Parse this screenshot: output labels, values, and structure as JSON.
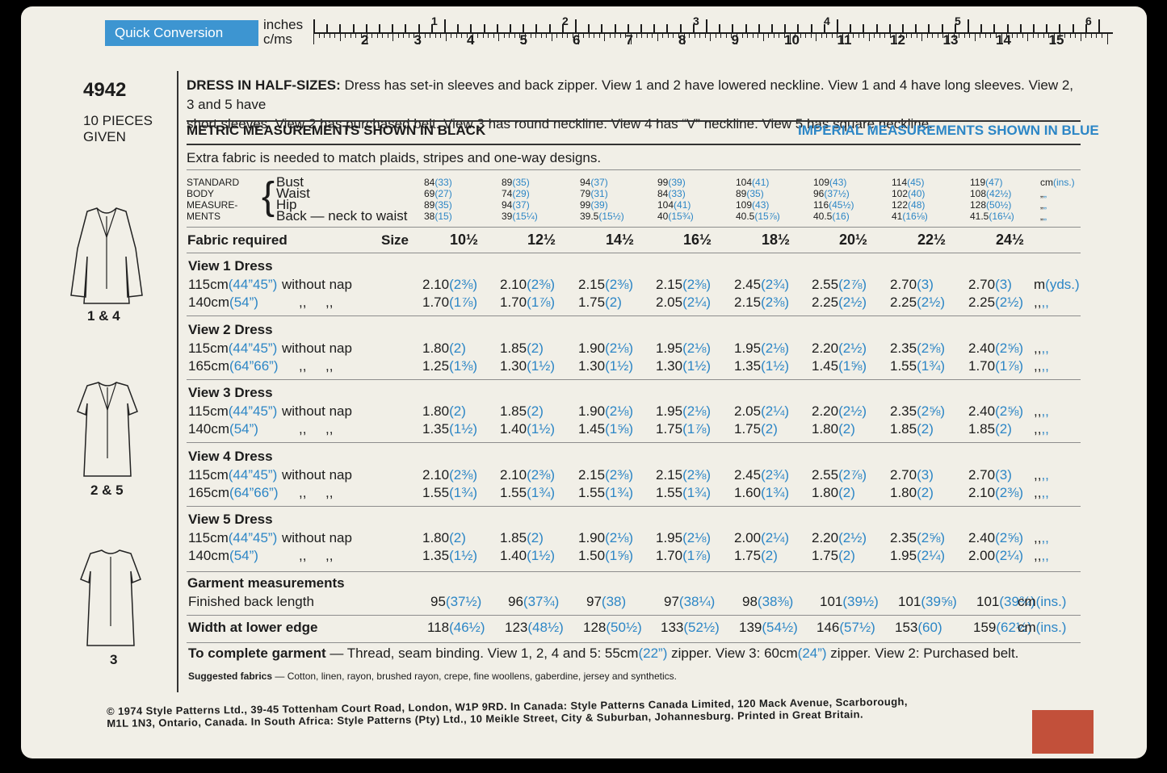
{
  "ruler": {
    "quick_conversion": "Quick Conversion",
    "inches_label": "inches",
    "cms_label": "c/ms",
    "inch_numbers": [
      "1",
      "2",
      "3",
      "4",
      "5",
      "6"
    ],
    "cm_numbers": [
      "2",
      "3",
      "4",
      "5",
      "6",
      "7",
      "8",
      "9",
      "10",
      "11",
      "12",
      "13",
      "14",
      "15"
    ]
  },
  "pattern_number": "4942",
  "pieces_line1": "10 PIECES",
  "pieces_line2": "GIVEN",
  "view_labels": [
    "1 & 4",
    "2 & 5",
    "3"
  ],
  "description_bold": "DRESS IN HALF-SIZES:",
  "description_line1": "Dress has set-in sleeves and back zipper. View 1 and 2 have lowered neckline. View 1 and 4 have long sleeves. View 2, 3 and 5 have",
  "description_line2": "short sleeves. View 2 has purchased belt. View 3 has round neckline. View 4 has “V” neckline. View 5 has square neckline.",
  "metric_heading": "METRIC MEASUREMENTS SHOWN IN BLACK",
  "imperial_heading": "IMPERIAL MEASUREMENTS SHOWN IN BLUE",
  "extra_fabric_note": "Extra fabric is needed to match plaids, stripes and one-way designs.",
  "body_measure_label": [
    "STANDARD",
    "BODY",
    "MEASURE-",
    "MENTS"
  ],
  "body_rows": [
    {
      "label": "Bust",
      "values": [
        [
          "84",
          "(33)"
        ],
        [
          "89",
          "(35)"
        ],
        [
          "94",
          "(37)"
        ],
        [
          "99",
          "(39)"
        ],
        [
          "104",
          "(41)"
        ],
        [
          "109",
          "(43)"
        ],
        [
          "114",
          "(45)"
        ],
        [
          "119",
          "(47)"
        ]
      ],
      "unit": [
        "cm",
        "(ins.)"
      ]
    },
    {
      "label": "Waist",
      "values": [
        [
          "69",
          "(27)"
        ],
        [
          "74",
          "(29)"
        ],
        [
          "79",
          "(31)"
        ],
        [
          "84",
          "(33)"
        ],
        [
          "89",
          "(35)"
        ],
        [
          "96",
          "(37½)"
        ],
        [
          "102",
          "(40)"
        ],
        [
          "108",
          "(42½)"
        ]
      ],
      "unit": [
        "„",
        "„"
      ]
    },
    {
      "label": "Hip",
      "values": [
        [
          "89",
          "(35)"
        ],
        [
          "94",
          "(37)"
        ],
        [
          "99",
          "(39)"
        ],
        [
          "104",
          "(41)"
        ],
        [
          "109",
          "(43)"
        ],
        [
          "116",
          "(45½)"
        ],
        [
          "122",
          "(48)"
        ],
        [
          "128",
          "(50½)"
        ]
      ],
      "unit": [
        "„",
        "„"
      ]
    },
    {
      "label": "Back — neck to waist",
      "values": [
        [
          "38",
          "(15)"
        ],
        [
          "39",
          "(15¼)"
        ],
        [
          "39.5",
          "(15½)"
        ],
        [
          "40",
          "(15¾)"
        ],
        [
          "40.5",
          "(15⅞)"
        ],
        [
          "40.5",
          "(16)"
        ],
        [
          "41",
          "(16⅛)"
        ],
        [
          "41.5",
          "(16¼)"
        ]
      ],
      "unit": [
        "„",
        "„"
      ]
    }
  ],
  "fabric_required": "Fabric required",
  "size_label": "Size",
  "sizes": [
    "10½",
    "12½",
    "14½",
    "16½",
    "18½",
    "20½",
    "22½",
    "24½"
  ],
  "views": [
    {
      "title": "View 1   Dress",
      "rows": [
        {
          "width": "115cm",
          "width_imp": "(44”45”)",
          "note": "without nap",
          "values": [
            [
              "2.10",
              "(2⅜)"
            ],
            [
              "2.10",
              "(2⅜)"
            ],
            [
              "2.15",
              "(2⅜)"
            ],
            [
              "2.15",
              "(2⅜)"
            ],
            [
              "2.45",
              "(2¾)"
            ],
            [
              "2.55",
              "(2⅞)"
            ],
            [
              "2.70",
              "(3)"
            ],
            [
              "2.70",
              "(3)"
            ]
          ],
          "unit": [
            "m",
            "(yds.)"
          ]
        },
        {
          "width": "140cm",
          "width_imp": "(54”)",
          "note": ",,     ,,",
          "values": [
            [
              "1.70",
              "(1⅞)"
            ],
            [
              "1.70",
              "(1⅞)"
            ],
            [
              "1.75",
              "(2)"
            ],
            [
              "2.05",
              "(2¼)"
            ],
            [
              "2.15",
              "(2⅜)"
            ],
            [
              "2.25",
              "(2½)"
            ],
            [
              "2.25",
              "(2½)"
            ],
            [
              "2.25",
              "(2½)"
            ]
          ],
          "unit": [
            ",,",
            ",,"
          ]
        }
      ]
    },
    {
      "title": "View 2   Dress",
      "rows": [
        {
          "width": "115cm",
          "width_imp": "(44”45”)",
          "note": "without nap",
          "values": [
            [
              "1.80",
              "(2)"
            ],
            [
              "1.85",
              "(2)"
            ],
            [
              "1.90",
              "(2⅛)"
            ],
            [
              "1.95",
              "(2⅛)"
            ],
            [
              "1.95",
              "(2⅛)"
            ],
            [
              "2.20",
              "(2½)"
            ],
            [
              "2.35",
              "(2⅝)"
            ],
            [
              "2.40",
              "(2⅝)"
            ]
          ],
          "unit": [
            ",,",
            ",,"
          ]
        },
        {
          "width": "165cm",
          "width_imp": "(64”66”)",
          "note": ",,     ,,",
          "values": [
            [
              "1.25",
              "(1⅜)"
            ],
            [
              "1.30",
              "(1½)"
            ],
            [
              "1.30",
              "(1½)"
            ],
            [
              "1.30",
              "(1½)"
            ],
            [
              "1.35",
              "(1½)"
            ],
            [
              "1.45",
              "(1⅝)"
            ],
            [
              "1.55",
              "(1¾)"
            ],
            [
              "1.70",
              "(1⅞)"
            ]
          ],
          "unit": [
            ",,",
            ",,"
          ]
        }
      ]
    },
    {
      "title": "View 3   Dress",
      "rows": [
        {
          "width": "115cm",
          "width_imp": "(44”45”)",
          "note": "without nap",
          "values": [
            [
              "1.80",
              "(2)"
            ],
            [
              "1.85",
              "(2)"
            ],
            [
              "1.90",
              "(2⅛)"
            ],
            [
              "1.95",
              "(2⅛)"
            ],
            [
              "2.05",
              "(2¼)"
            ],
            [
              "2.20",
              "(2½)"
            ],
            [
              "2.35",
              "(2⅝)"
            ],
            [
              "2.40",
              "(2⅝)"
            ]
          ],
          "unit": [
            ",,",
            ",,"
          ]
        },
        {
          "width": "140cm",
          "width_imp": "(54”)",
          "note": ",,     ,,",
          "values": [
            [
              "1.35",
              "(1½)"
            ],
            [
              "1.40",
              "(1½)"
            ],
            [
              "1.45",
              "(1⅝)"
            ],
            [
              "1.75",
              "(1⅞)"
            ],
            [
              "1.75",
              "(2)"
            ],
            [
              "1.80",
              "(2)"
            ],
            [
              "1.85",
              "(2)"
            ],
            [
              "1.85",
              "(2)"
            ]
          ],
          "unit": [
            ",,",
            ",,"
          ]
        }
      ]
    },
    {
      "title": "View 4   Dress",
      "rows": [
        {
          "width": "115cm",
          "width_imp": "(44”45”)",
          "note": "without nap",
          "values": [
            [
              "2.10",
              "(2⅜)"
            ],
            [
              "2.10",
              "(2⅜)"
            ],
            [
              "2.15",
              "(2⅜)"
            ],
            [
              "2.15",
              "(2⅜)"
            ],
            [
              "2.45",
              "(2¾)"
            ],
            [
              "2.55",
              "(2⅞)"
            ],
            [
              "2.70",
              "(3)"
            ],
            [
              "2.70",
              "(3)"
            ]
          ],
          "unit": [
            ",,",
            ",,"
          ]
        },
        {
          "width": "165cm",
          "width_imp": "(64”66”)",
          "note": ",,     ,,",
          "values": [
            [
              "1.55",
              "(1¾)"
            ],
            [
              "1.55",
              "(1¾)"
            ],
            [
              "1.55",
              "(1¾)"
            ],
            [
              "1.55",
              "(1¾)"
            ],
            [
              "1.60",
              "(1¾)"
            ],
            [
              "1.80",
              "(2)"
            ],
            [
              "1.80",
              "(2)"
            ],
            [
              "2.10",
              "(2⅜)"
            ]
          ],
          "unit": [
            ",,",
            ",,"
          ]
        }
      ]
    },
    {
      "title": "View 5   Dress",
      "rows": [
        {
          "width": "115cm",
          "width_imp": "(44”45”)",
          "note": "without nap",
          "values": [
            [
              "1.80",
              "(2)"
            ],
            [
              "1.85",
              "(2)"
            ],
            [
              "1.90",
              "(2⅛)"
            ],
            [
              "1.95",
              "(2⅛)"
            ],
            [
              "2.00",
              "(2¼)"
            ],
            [
              "2.20",
              "(2½)"
            ],
            [
              "2.35",
              "(2⅝)"
            ],
            [
              "2.40",
              "(2⅝)"
            ]
          ],
          "unit": [
            ",,",
            ",,"
          ]
        },
        {
          "width": "140cm",
          "width_imp": "(54”)",
          "note": ",,     ,,",
          "values": [
            [
              "1.35",
              "(1½)"
            ],
            [
              "1.40",
              "(1½)"
            ],
            [
              "1.50",
              "(1⅝)"
            ],
            [
              "1.70",
              "(1⅞)"
            ],
            [
              "1.75",
              "(2)"
            ],
            [
              "1.75",
              "(2)"
            ],
            [
              "1.95",
              "(2¼)"
            ],
            [
              "2.00",
              "(2¼)"
            ]
          ],
          "unit": [
            ",,",
            ",,"
          ]
        }
      ]
    }
  ],
  "garment_measurements": "Garment measurements",
  "finished_back_length": {
    "label": "Finished back length",
    "values": [
      [
        "95",
        "(37½)"
      ],
      [
        "96",
        "(37¾)"
      ],
      [
        "97",
        "(38)"
      ],
      [
        "97",
        "(38¼)"
      ],
      [
        "98",
        "(38⅜)"
      ],
      [
        "101",
        "(39½)"
      ],
      [
        "101",
        "(39⅝)"
      ],
      [
        "101",
        "(39¾)"
      ]
    ],
    "unit": [
      "cm",
      "(ins.)"
    ]
  },
  "width_lower_edge": {
    "label": "Width at lower edge",
    "values": [
      [
        "118",
        "(46½)"
      ],
      [
        "123",
        "(48½)"
      ],
      [
        "128",
        "(50½)"
      ],
      [
        "133",
        "(52½)"
      ],
      [
        "139",
        "(54½)"
      ],
      [
        "146",
        "(57½)"
      ],
      [
        "153",
        "(60)"
      ],
      [
        "159",
        "(62½)"
      ]
    ],
    "unit": [
      "cm",
      "(ins.)"
    ]
  },
  "complete_bold": "To complete garment",
  "complete_part1": " — Thread, seam binding. View 1, 2, 4 and 5: 55cm",
  "complete_imp1": "(22”)",
  "complete_part2": " zipper. View 3: 60cm",
  "complete_imp2": "(24”)",
  "complete_part3": " zipper. View 2: Purchased belt.",
  "suggested_bold": "Suggested fabrics",
  "suggested_text": " — Cotton, linen, rayon, brushed rayon, crepe, fine woollens, gaberdine, jersey and synthetics.",
  "footer_line1": "© 1974 Style Patterns Ltd., 39-45 Tottenham Court Road, London, W1P 9RD. In Canada: Style Patterns Canada Limited, 120 Mack Avenue, Scarborough,",
  "footer_line2": "M1L 1N3, Ontario, Canada. In South Africa: Style Patterns (Pty) Ltd., 10 Meikle Street, City & Suburban, Johannesburg. Printed in Great Britain.",
  "colors": {
    "metric": "#1c1c1c",
    "imperial": "#2c86c6",
    "paper": "#f1efe7",
    "swatch": "#c2503a"
  }
}
